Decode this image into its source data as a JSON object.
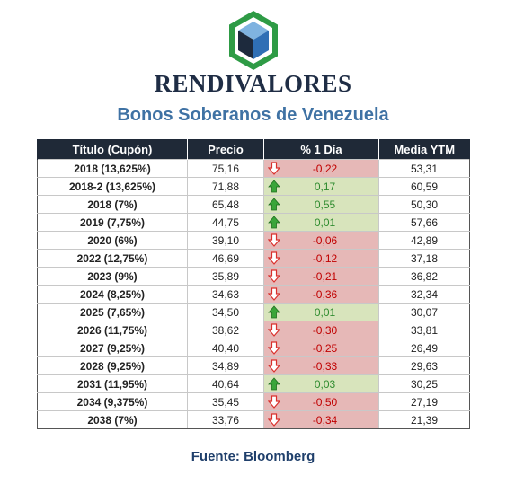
{
  "brand": "RENDIVALORES",
  "subtitle": "Bonos Soberanos de Venezuela",
  "columns": [
    "Título (Cupón)",
    "Precio",
    "% 1 Día",
    "Media YTM"
  ],
  "colors": {
    "up": "#d8e4bc",
    "down": "#e6b8b7",
    "header": "#1f2937",
    "accent": "#3f72a4"
  },
  "rows": [
    {
      "title": "2018 (13,625%)",
      "price": "75,16",
      "change": "-0,22",
      "direction": "down",
      "ytm": "53,31"
    },
    {
      "title": "2018-2 (13,625%)",
      "price": "71,88",
      "change": "0,17",
      "direction": "up",
      "ytm": "60,59"
    },
    {
      "title": "2018 (7%)",
      "price": "65,48",
      "change": "0,55",
      "direction": "up",
      "ytm": "50,30"
    },
    {
      "title": "2019 (7,75%)",
      "price": "44,75",
      "change": "0,01",
      "direction": "up",
      "ytm": "57,66"
    },
    {
      "title": "2020 (6%)",
      "price": "39,10",
      "change": "-0,06",
      "direction": "down",
      "ytm": "42,89"
    },
    {
      "title": "2022 (12,75%)",
      "price": "46,69",
      "change": "-0,12",
      "direction": "down",
      "ytm": "37,18"
    },
    {
      "title": "2023 (9%)",
      "price": "35,89",
      "change": "-0,21",
      "direction": "down",
      "ytm": "36,82"
    },
    {
      "title": "2024 (8,25%)",
      "price": "34,63",
      "change": "-0,36",
      "direction": "down",
      "ytm": "32,34"
    },
    {
      "title": "2025 (7,65%)",
      "price": "34,50",
      "change": "0,01",
      "direction": "up",
      "ytm": "30,07"
    },
    {
      "title": "2026 (11,75%)",
      "price": "38,62",
      "change": "-0,30",
      "direction": "down",
      "ytm": "33,81"
    },
    {
      "title": "2027 (9,25%)",
      "price": "40,40",
      "change": "-0,25",
      "direction": "down",
      "ytm": "26,49"
    },
    {
      "title": "2028 (9,25%)",
      "price": "34,89",
      "change": "-0,33",
      "direction": "down",
      "ytm": "29,63"
    },
    {
      "title": "2031 (11,95%)",
      "price": "40,64",
      "change": "0,03",
      "direction": "up",
      "ytm": "30,25"
    },
    {
      "title": "2034 (9,375%)",
      "price": "35,45",
      "change": "-0,50",
      "direction": "down",
      "ytm": "27,19"
    },
    {
      "title": "2038 (7%)",
      "price": "33,76",
      "change": "-0,34",
      "direction": "down",
      "ytm": "21,39"
    }
  ],
  "source": "Fuente: Bloomberg"
}
